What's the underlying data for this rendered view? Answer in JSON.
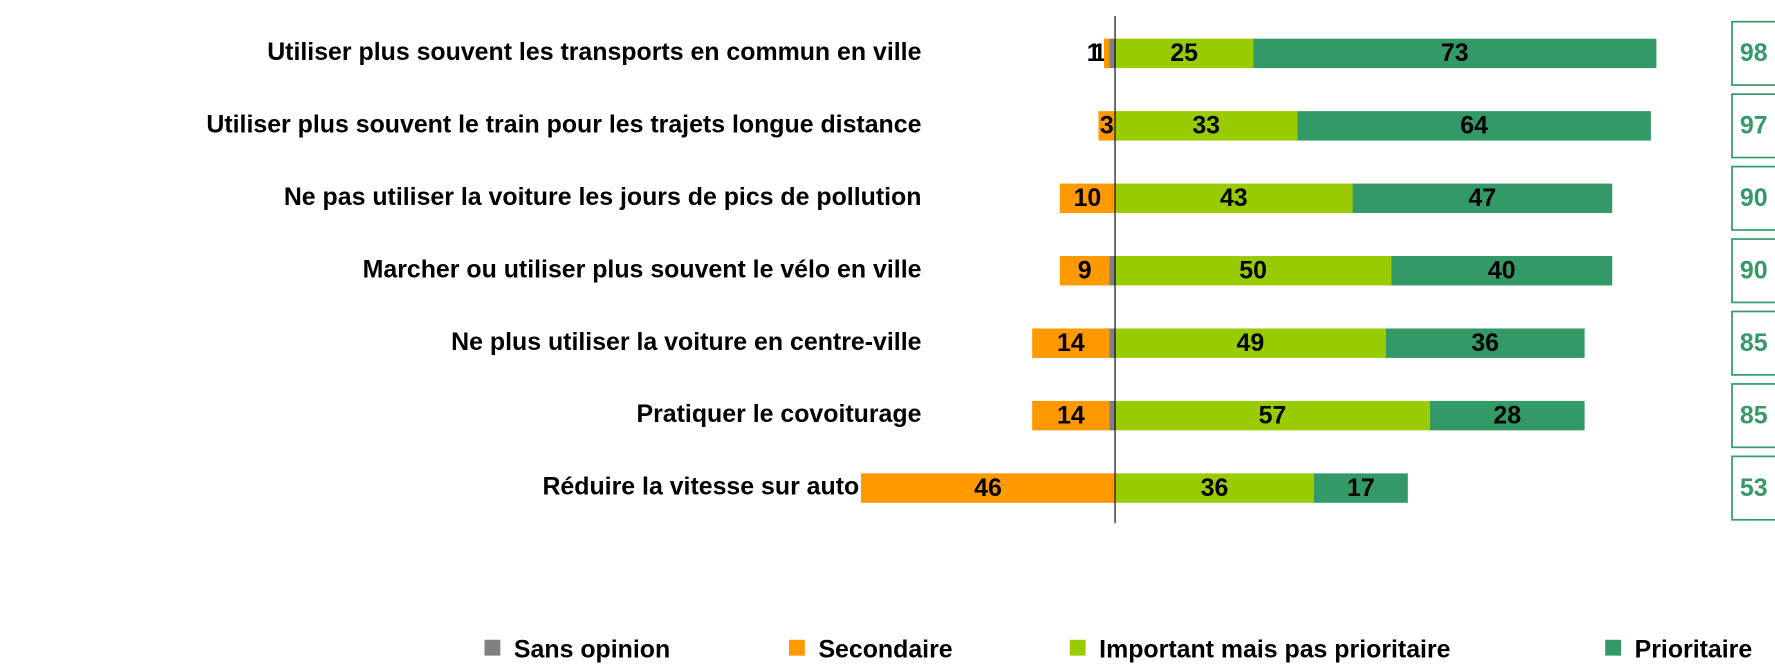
{
  "chart_data": {
    "type": "diverging_bar",
    "categories": [
      "Utiliser plus souvent les transports en commun en ville",
      "Utiliser plus souvent le train pour les trajets longue distance",
      "Ne pas utiliser la voiture les jours de pics de pollution",
      "Marcher ou utiliser plus souvent le vélo en ville",
      "Ne plus utiliser la voiture en centre-ville",
      "Pratiquer le covoiturage",
      "Réduire la vitesse sur autoroute"
    ],
    "series": [
      {
        "name": "Sans opinion",
        "color": "#808080",
        "side": "negative",
        "values": [
          1,
          null,
          null,
          1,
          1,
          1,
          null
        ]
      },
      {
        "name": "Secondaire",
        "color": "#ff9900",
        "side": "negative",
        "values": [
          1,
          3,
          10,
          9,
          14,
          14,
          46
        ]
      },
      {
        "name": "Important mais pas prioritaire",
        "color": "#99cc00",
        "side": "positive",
        "values": [
          25,
          33,
          43,
          50,
          49,
          57,
          36
        ]
      },
      {
        "name": "Prioritaire",
        "color": "#339966",
        "side": "positive",
        "values": [
          73,
          64,
          47,
          40,
          36,
          28,
          17
        ]
      }
    ],
    "totals": [
      98,
      97,
      90,
      90,
      85,
      85,
      53
    ],
    "totals_color": "#339966"
  }
}
